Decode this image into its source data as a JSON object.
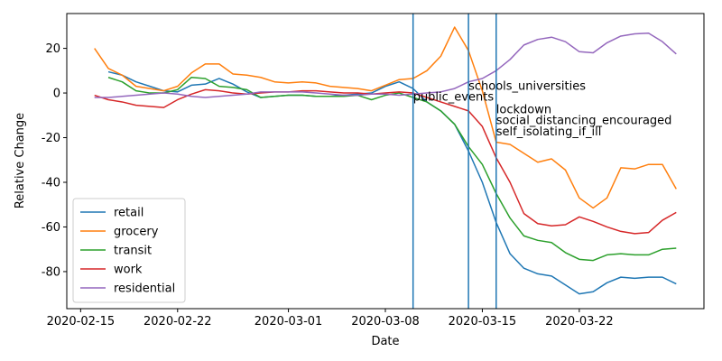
{
  "chart_data": {
    "type": "line",
    "x_label": "Date",
    "y_label": "Relative Change",
    "x": [
      "2020-02-16",
      "2020-02-17",
      "2020-02-18",
      "2020-02-19",
      "2020-02-20",
      "2020-02-21",
      "2020-02-22",
      "2020-02-23",
      "2020-02-24",
      "2020-02-25",
      "2020-02-26",
      "2020-02-27",
      "2020-02-28",
      "2020-02-29",
      "2020-03-01",
      "2020-03-02",
      "2020-03-03",
      "2020-03-04",
      "2020-03-05",
      "2020-03-06",
      "2020-03-07",
      "2020-03-08",
      "2020-03-09",
      "2020-03-10",
      "2020-03-11",
      "2020-03-12",
      "2020-03-13",
      "2020-03-14",
      "2020-03-15",
      "2020-03-16",
      "2020-03-17",
      "2020-03-18",
      "2020-03-19",
      "2020-03-20",
      "2020-03-21",
      "2020-03-22",
      "2020-03-23",
      "2020-03-24",
      "2020-03-25",
      "2020-03-26",
      "2020-03-27",
      "2020-03-28",
      "2020-03-29"
    ],
    "series": [
      {
        "name": "retail",
        "color": "#1f77b4",
        "values": [
          null,
          9.5,
          8,
          5,
          3,
          1,
          0.5,
          3.5,
          4,
          6.5,
          4,
          0.5,
          -2,
          -1.5,
          -1,
          -1,
          -1.5,
          -1.5,
          -1,
          -0.5,
          0,
          3,
          5,
          2,
          -4,
          -8,
          -14,
          -26,
          -40,
          -58,
          -72,
          -78.5,
          -81,
          -82,
          -86,
          -90,
          -89,
          -85,
          -82.5,
          -83,
          -82.5,
          -82.5,
          -85.5
        ]
      },
      {
        "name": "grocery",
        "color": "#ff7f0e",
        "values": [
          20,
          11,
          8,
          3,
          2,
          1,
          3,
          9,
          13,
          13,
          8.5,
          8,
          7,
          5,
          4.5,
          5,
          4.5,
          3,
          2.5,
          2,
          1,
          3.5,
          6,
          6.5,
          10,
          16.5,
          29.5,
          19,
          1,
          -22,
          -23,
          -27,
          -31,
          -29.5,
          -34.5,
          -47,
          -51.5,
          -47,
          -33.5,
          -34,
          -32,
          -32,
          -43
        ]
      },
      {
        "name": "transit",
        "color": "#2ca02c",
        "values": [
          null,
          7,
          5,
          1,
          0,
          0,
          1.5,
          7,
          6.5,
          3,
          2.5,
          1.5,
          -2,
          -1.5,
          -1,
          -1,
          -1.5,
          -1.5,
          -1.5,
          -1,
          -3,
          -1,
          0,
          -2,
          -4,
          -8,
          -14,
          -24,
          -32,
          -45,
          -56,
          -64,
          -66,
          -67,
          -71.5,
          -74.5,
          -75,
          -72.5,
          -72,
          -72.5,
          -72.5,
          -70,
          -69.5
        ]
      },
      {
        "name": "work",
        "color": "#d62728",
        "values": [
          -1,
          -3,
          -4,
          -5.5,
          -6,
          -6.5,
          -3,
          -0.5,
          1.5,
          1,
          0,
          -0.5,
          0,
          0.5,
          0.5,
          1,
          1,
          0.5,
          0,
          0,
          -0.5,
          0,
          0.5,
          0,
          -2,
          -4,
          -6,
          -8,
          -15,
          -29,
          -40,
          -54,
          -58.5,
          -59.5,
          -59,
          -55.5,
          -57.5,
          -60,
          -62,
          -63,
          -62.5,
          -57,
          -53.5
        ]
      },
      {
        "name": "residential",
        "color": "#9467bd",
        "values": [
          -2,
          -2,
          -1.5,
          -1,
          -0.5,
          0,
          -0.5,
          -1.5,
          -2,
          -1.5,
          -1,
          -0.5,
          0.5,
          0.5,
          0.5,
          0.5,
          0,
          -0.5,
          -1,
          -1,
          -0.5,
          -0.5,
          -1,
          -0.5,
          0,
          0.5,
          2,
          5,
          6.5,
          10,
          15,
          21.5,
          24,
          25,
          23,
          18.5,
          18,
          22.5,
          25.5,
          26.5,
          26.8,
          23,
          17.5
        ]
      }
    ],
    "events": [
      {
        "x": "2020-03-10",
        "label": "public_events",
        "y": -3.5
      },
      {
        "x": "2020-03-14",
        "label": "schools_universities",
        "y": 1.5
      },
      {
        "x": "2020-03-16",
        "label": "lockdown",
        "y": -9
      },
      {
        "x": "2020-03-16",
        "label": "social_distancing_encouraged",
        "y": -14
      },
      {
        "x": "2020-03-16",
        "label": "self_isolating_if_ill",
        "y": -19
      }
    ],
    "event_line_color": "#1f77b4",
    "xlim": [
      "2020-02-14",
      "2020-03-31"
    ],
    "xticks": [
      "2020-02-15",
      "2020-02-22",
      "2020-03-01",
      "2020-03-08",
      "2020-03-15",
      "2020-03-22"
    ],
    "ylim": [
      -96.6,
      35.6
    ],
    "yticks": [
      -80,
      -60,
      -40,
      -20,
      0,
      20
    ],
    "legend": "lower left"
  }
}
